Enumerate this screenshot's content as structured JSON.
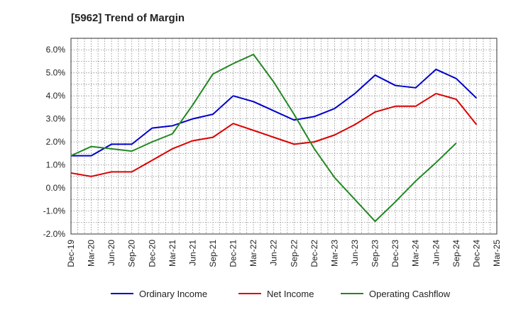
{
  "chart_data": {
    "type": "line",
    "title": "[5962]  Trend of Margin",
    "xlabel": "",
    "ylabel": "",
    "categories": [
      "Dec-19",
      "Mar-20",
      "Jun-20",
      "Sep-20",
      "Dec-20",
      "Mar-21",
      "Jun-21",
      "Sep-21",
      "Dec-21",
      "Mar-22",
      "Jun-22",
      "Sep-22",
      "Dec-22",
      "Mar-23",
      "Jun-23",
      "Sep-23",
      "Dec-23",
      "Mar-24",
      "Jun-24",
      "Sep-24",
      "Dec-24",
      "Mar-25"
    ],
    "ylim": [
      -2.0,
      6.5
    ],
    "yticks": [
      -2.0,
      -1.0,
      0.0,
      1.0,
      2.0,
      3.0,
      4.0,
      5.0,
      6.0
    ],
    "ytick_labels": [
      "-2.0%",
      "-1.0%",
      "0.0%",
      "1.0%",
      "2.0%",
      "3.0%",
      "4.0%",
      "5.0%",
      "6.0%"
    ],
    "grid": true,
    "legend_position": "bottom",
    "series": [
      {
        "name": "Ordinary Income",
        "color": "#0000cc",
        "values": [
          1.4,
          1.4,
          1.9,
          1.9,
          2.6,
          2.7,
          3.0,
          3.2,
          4.0,
          3.75,
          3.35,
          2.95,
          3.1,
          3.45,
          4.1,
          4.9,
          4.45,
          4.35,
          5.15,
          4.75,
          3.9,
          null
        ]
      },
      {
        "name": "Net Income",
        "color": "#dd0000",
        "values": [
          0.65,
          0.5,
          0.7,
          0.7,
          1.2,
          1.7,
          2.05,
          2.2,
          2.8,
          2.5,
          2.2,
          1.9,
          2.0,
          2.3,
          2.75,
          3.3,
          3.55,
          3.55,
          4.1,
          3.85,
          2.75,
          null
        ]
      },
      {
        "name": "Operating Cashflow",
        "color": "#228822",
        "values": [
          1.4,
          1.8,
          1.7,
          1.6,
          2.0,
          2.35,
          3.6,
          4.95,
          5.4,
          5.8,
          4.6,
          3.2,
          1.7,
          0.45,
          -0.5,
          -1.45,
          -0.6,
          0.3,
          1.1,
          1.95,
          null,
          null
        ]
      }
    ]
  }
}
